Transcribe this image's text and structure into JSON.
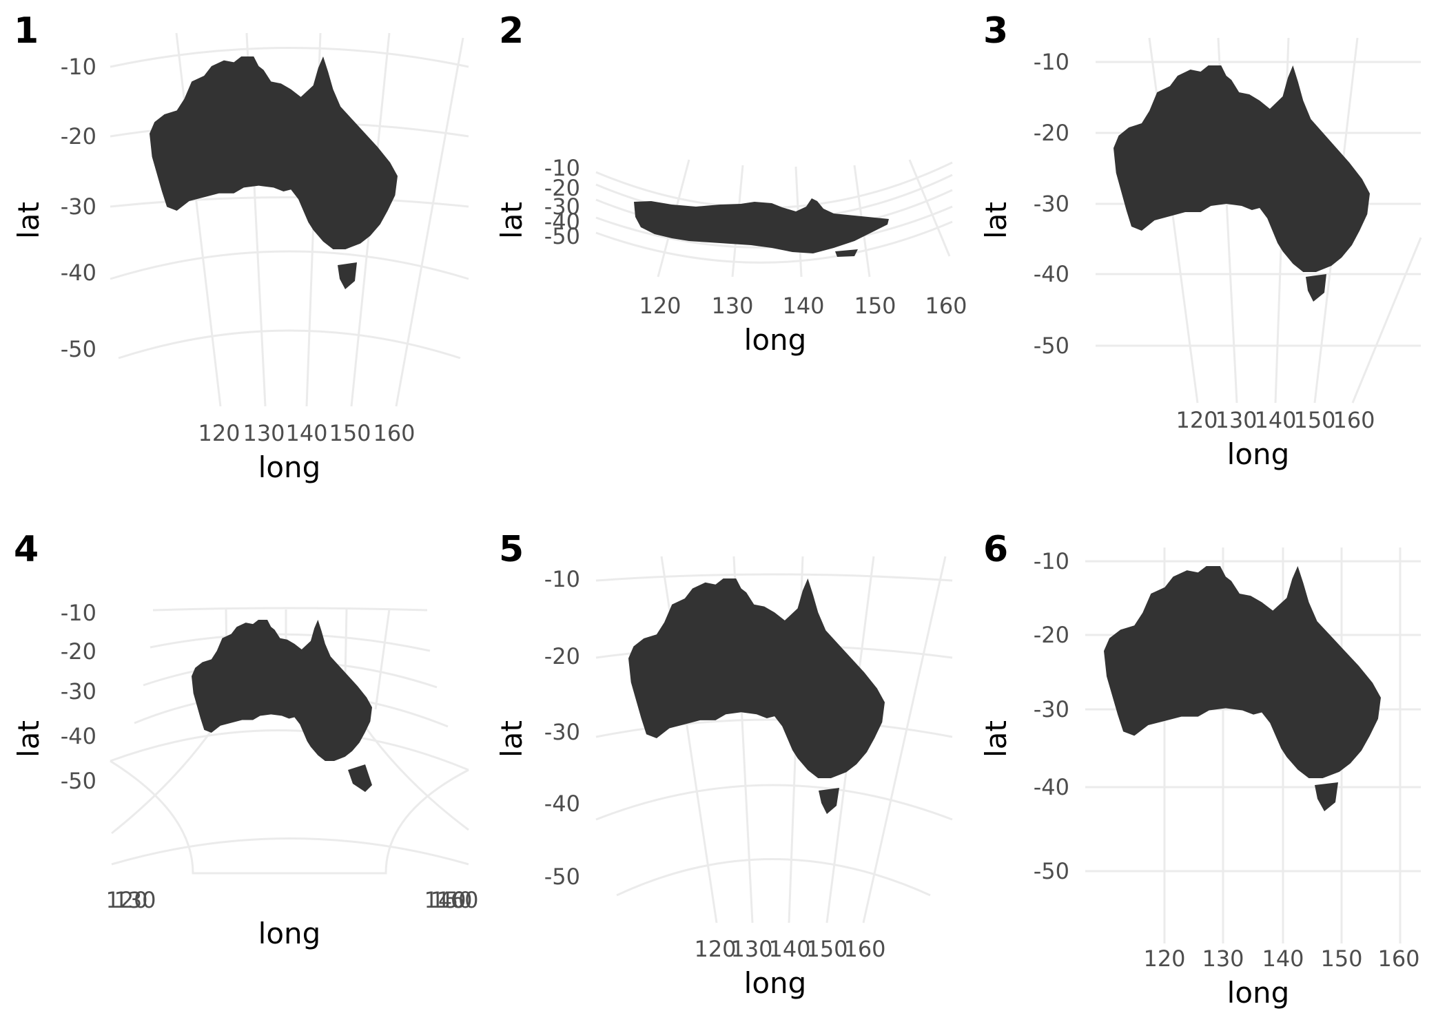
{
  "chart_data": [
    {
      "type": "map",
      "tag": "1",
      "xlabel": "long",
      "ylabel": "lat",
      "x_ticks": [
        "120",
        "130",
        "140",
        "150",
        "160"
      ],
      "y_ticks": [
        "-10",
        "-20",
        "-30",
        "-40",
        "-50"
      ],
      "grid": true
    },
    {
      "type": "map",
      "tag": "2",
      "xlabel": "long",
      "ylabel": "lat",
      "x_ticks": [
        "120",
        "130",
        "140",
        "150",
        "160"
      ],
      "y_ticks": [
        "-10",
        "-20",
        "-30",
        "-40",
        "-50"
      ],
      "grid": true
    },
    {
      "type": "map",
      "tag": "3",
      "xlabel": "long",
      "ylabel": "lat",
      "x_ticks": [
        "120",
        "130",
        "140",
        "150",
        "160"
      ],
      "y_ticks": [
        "-10",
        "-20",
        "-30",
        "-40",
        "-50"
      ],
      "grid": true
    },
    {
      "type": "map",
      "tag": "4",
      "xlabel": "long",
      "ylabel": "lat",
      "x_ticks": [
        "120",
        "130",
        "140",
        "150",
        "160"
      ],
      "y_ticks": [
        "-10",
        "-20",
        "-30",
        "-40",
        "-50"
      ],
      "grid": true
    },
    {
      "type": "map",
      "tag": "5",
      "xlabel": "long",
      "ylabel": "lat",
      "x_ticks": [
        "120",
        "130",
        "140",
        "150",
        "160"
      ],
      "y_ticks": [
        "-10",
        "-20",
        "-30",
        "-40",
        "-50"
      ],
      "grid": true
    },
    {
      "type": "map",
      "tag": "6",
      "xlabel": "long",
      "ylabel": "lat",
      "x_ticks": [
        "120",
        "130",
        "140",
        "150",
        "160"
      ],
      "y_ticks": [
        "-10",
        "-20",
        "-30",
        "-40",
        "-50"
      ],
      "grid": true
    }
  ],
  "colors": {
    "land": "#333333",
    "grid": "#ebebeb",
    "tick_text": "#4d4d4d",
    "background": "#ffffff"
  }
}
